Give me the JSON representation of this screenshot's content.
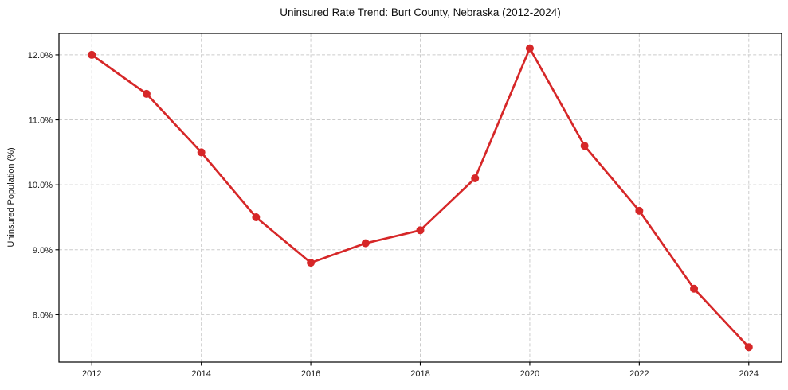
{
  "chart_data": {
    "type": "line",
    "title": "Uninsured Rate Trend: Burt County, Nebraska (2012-2024)",
    "xlabel": "",
    "ylabel": "Uninsured Population (%)",
    "x": [
      2012,
      2013,
      2014,
      2015,
      2016,
      2017,
      2018,
      2019,
      2020,
      2021,
      2022,
      2023,
      2024
    ],
    "series": [
      {
        "name": "Uninsured Rate",
        "values": [
          12.0,
          11.4,
          10.5,
          9.5,
          8.8,
          9.1,
          9.3,
          10.1,
          12.1,
          10.6,
          9.6,
          8.4,
          7.5
        ]
      }
    ],
    "xticks": [
      2012,
      2014,
      2016,
      2018,
      2020,
      2022,
      2024
    ],
    "xtick_labels": [
      "2012",
      "2014",
      "2016",
      "2018",
      "2020",
      "2022",
      "2024"
    ],
    "yticks": [
      8.0,
      9.0,
      10.0,
      11.0,
      12.0
    ],
    "ytick_labels": [
      "8.0%",
      "9.0%",
      "10.0%",
      "11.0%",
      "12.0%"
    ],
    "xlim": [
      2011.4,
      2024.6
    ],
    "ylim": [
      7.27,
      12.33
    ],
    "grid": true,
    "legend": "none",
    "line_color": "#d62728",
    "marker": "o"
  },
  "colors": {
    "line": "#d62728",
    "grid": "#cccccc",
    "frame": "#000000",
    "text": "#1a1a1a",
    "background": "#ffffff"
  }
}
